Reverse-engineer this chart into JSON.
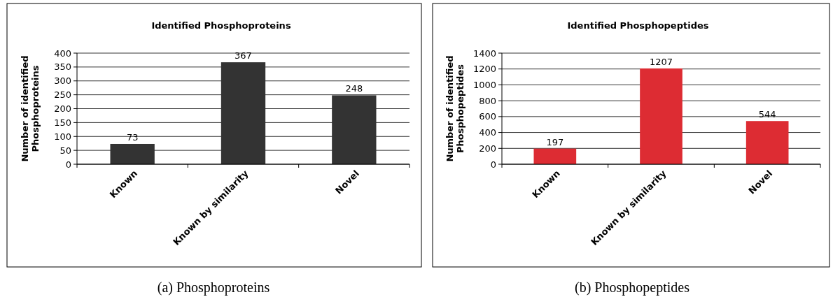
{
  "chart_data": [
    {
      "type": "bar",
      "title": "Identified Phosphoproteins",
      "ylabel": "Number of identified Phosphoproteins",
      "categories": [
        "Known",
        "Known by similarity",
        "Novel"
      ],
      "values": [
        73,
        367,
        248
      ],
      "color": "#333333",
      "ylim": [
        0,
        400
      ],
      "yticks": [
        0,
        50,
        100,
        150,
        200,
        250,
        300,
        350,
        400
      ],
      "grid": "y",
      "data_labels": true,
      "annotations": [
        "(a) Phosphoproteins"
      ]
    },
    {
      "type": "bar",
      "title": "Identified Phosphopeptides",
      "ylabel": "Number of identified Phosphopeptides",
      "categories": [
        "Known",
        "Known by similarity",
        "Novel"
      ],
      "values": [
        197,
        1207,
        544
      ],
      "color": "#dd2c33",
      "ylim": [
        0,
        1400
      ],
      "yticks": [
        0,
        200,
        400,
        600,
        800,
        1000,
        1200,
        1400
      ],
      "grid": "y",
      "data_labels": true,
      "annotations": [
        "(b) Phosphopeptides"
      ]
    }
  ]
}
